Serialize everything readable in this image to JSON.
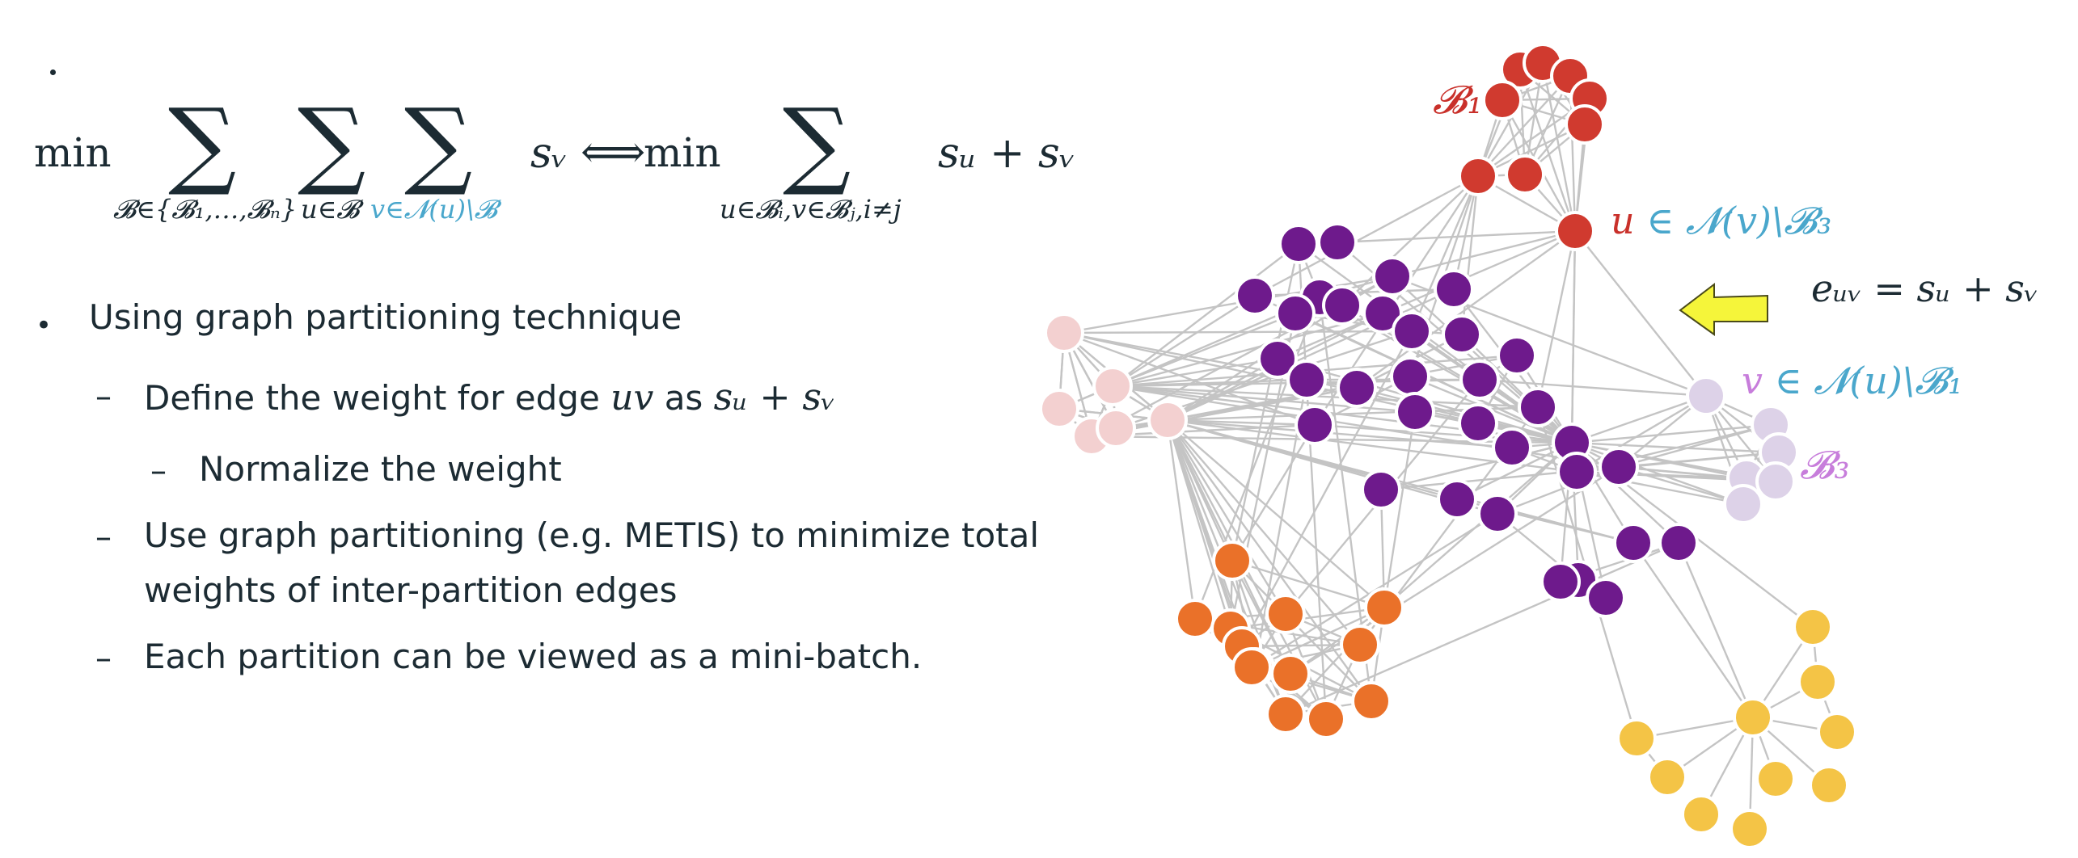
{
  "formula": {
    "min1": "min",
    "sum1_sub": "𝓑∈{𝓑₁,…,𝓑ₙ}",
    "sum2_sub": "u∈𝓑",
    "sum3_sub": "v∈𝓝(u)\\𝓑",
    "term1": "sᵥ",
    "iff": "⟺",
    "min2": "min",
    "sum4_sub": "u∈𝓑ᵢ,v∈𝓑ⱼ,i≠j",
    "term2": "sᵤ + sᵥ"
  },
  "bullets": {
    "main": "Using graph partitioning technique",
    "sub1_prefix": "Define the weight for edge ",
    "sub1_math": "uv",
    "sub1_mid": " as ",
    "sub1_math2": "sᵤ + sᵥ",
    "sub1a": "Normalize the weight",
    "sub2_line1": "Use graph partitioning (e.g. METIS) to minimize total",
    "sub2_line2": "weights of inter-partition edges",
    "sub3": "Each partition can be viewed as a mini-batch."
  },
  "diagram_labels": {
    "b1": "𝓑₁",
    "u_label": "u ∈ 𝓝(v)\\𝓑₃",
    "euv": "eᵤᵥ = sᵤ + sᵥ",
    "v_label": "v ∈ 𝓝(u)\\𝓑₁",
    "b3": "𝓑₃"
  },
  "colors": {
    "red": "#d03a2f",
    "purple": "#6e1a8c",
    "pink": "#f3d0d0",
    "orange": "#ea7129",
    "yellow": "#f4c446",
    "lavender": "#ddd2e8",
    "teal": "#4aa7cc",
    "violet": "#c77ddb",
    "arrow_fill": "#f5f53a",
    "edge": "#c4c4c4"
  }
}
